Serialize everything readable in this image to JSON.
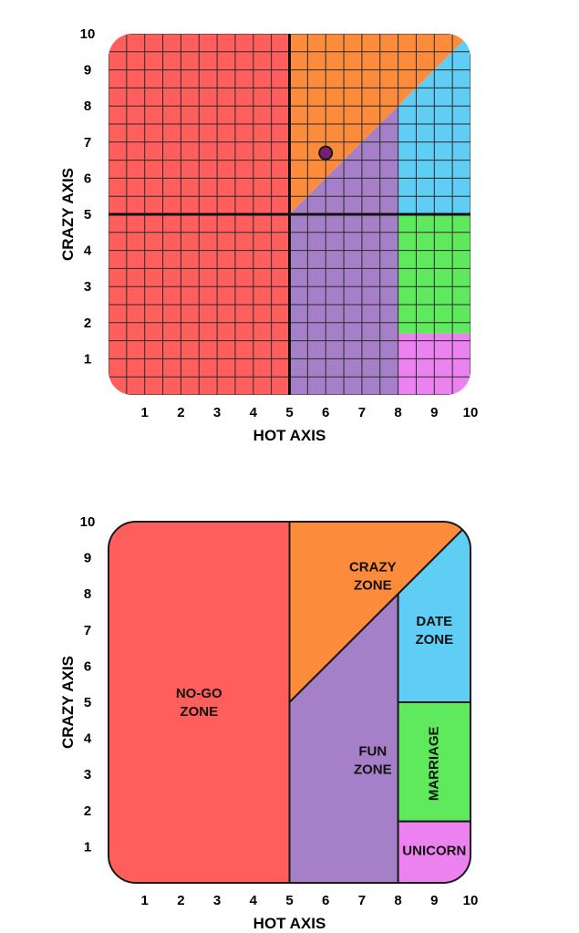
{
  "chart_data": [
    {
      "type": "scatter",
      "xlabel": "HOT AXIS",
      "ylabel": "CRAZY AXIS",
      "xlim": [
        0,
        10
      ],
      "ylim": [
        0,
        10
      ],
      "x_ticks": [
        "1",
        "2",
        "3",
        "4",
        "5",
        "6",
        "7",
        "8",
        "9",
        "10"
      ],
      "y_ticks": [
        "1",
        "2",
        "3",
        "4",
        "5",
        "6",
        "7",
        "8",
        "9",
        "10"
      ],
      "grid": true,
      "grid_step": 0.5,
      "points": [
        {
          "x": 6.0,
          "y": 6.7,
          "color": "#7a1f6e"
        }
      ],
      "zones": [
        {
          "key": "nogo",
          "color": "#fe5f5d"
        },
        {
          "key": "crazy",
          "color": "#fc8c3c"
        },
        {
          "key": "fun",
          "color": "#a57fc8"
        },
        {
          "key": "date",
          "color": "#5fcdf4"
        },
        {
          "key": "marriage",
          "color": "#5eea5c"
        },
        {
          "key": "unicorn",
          "color": "#ec82ef"
        }
      ]
    },
    {
      "type": "area",
      "xlabel": "HOT AXIS",
      "ylabel": "CRAZY AXIS",
      "xlim": [
        0,
        10
      ],
      "ylim": [
        0,
        10
      ],
      "x_ticks": [
        "1",
        "2",
        "3",
        "4",
        "5",
        "6",
        "7",
        "8",
        "9",
        "10"
      ],
      "y_ticks": [
        "1",
        "2",
        "3",
        "4",
        "5",
        "6",
        "7",
        "8",
        "9",
        "10"
      ],
      "grid": false,
      "zones": [
        {
          "key": "nogo",
          "label_lines": [
            "NO-GO",
            "ZONE"
          ],
          "color": "#fe5f5d"
        },
        {
          "key": "crazy",
          "label_lines": [
            "CRAZY",
            "ZONE"
          ],
          "color": "#fc8c3c"
        },
        {
          "key": "fun",
          "label_lines": [
            "FUN",
            "ZONE"
          ],
          "color": "#a57fc8"
        },
        {
          "key": "date",
          "label_lines": [
            "DATE",
            "ZONE"
          ],
          "color": "#5fcdf4"
        },
        {
          "key": "marriage",
          "label_lines": [
            "MARRIAGE"
          ],
          "color": "#5eea5c"
        },
        {
          "key": "unicorn",
          "label_lines": [
            "UNICORN"
          ],
          "color": "#ec82ef"
        }
      ]
    }
  ]
}
